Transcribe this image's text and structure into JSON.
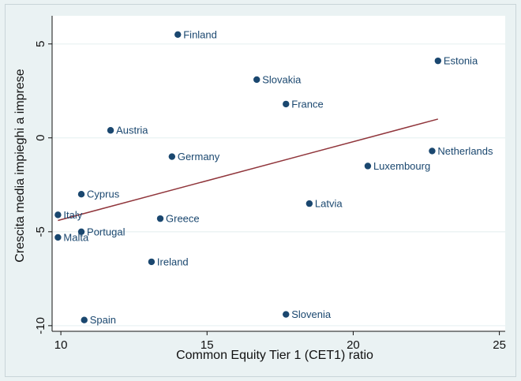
{
  "chart_data": {
    "type": "scatter",
    "xlabel": "Common Equity Tier 1 (CET1) ratio",
    "ylabel": "Crescita media impieghi a imprese",
    "xlim": [
      9.7,
      25.2
    ],
    "ylim": [
      -10.3,
      6.5
    ],
    "xticks": [
      10,
      15,
      20,
      25
    ],
    "yticks": [
      -10,
      -5,
      0,
      5
    ],
    "grid": true,
    "legend": "none",
    "marker_color": "#1a476f",
    "fit_color": "#90353b",
    "points": [
      {
        "label": "Finland",
        "x": 14.0,
        "y": 5.5
      },
      {
        "label": "Estonia",
        "x": 22.9,
        "y": 4.1
      },
      {
        "label": "Slovakia",
        "x": 16.7,
        "y": 3.1
      },
      {
        "label": "France",
        "x": 17.7,
        "y": 1.8
      },
      {
        "label": "Austria",
        "x": 11.7,
        "y": 0.4
      },
      {
        "label": "Netherlands",
        "x": 22.7,
        "y": -0.7
      },
      {
        "label": "Germany",
        "x": 13.8,
        "y": -1.0
      },
      {
        "label": "Luxembourg",
        "x": 20.5,
        "y": -1.5
      },
      {
        "label": "Cyprus",
        "x": 10.7,
        "y": -3.0
      },
      {
        "label": "Latvia",
        "x": 18.5,
        "y": -3.5
      },
      {
        "label": "Italy",
        "x": 9.9,
        "y": -4.1
      },
      {
        "label": "Greece",
        "x": 13.4,
        "y": -4.3
      },
      {
        "label": "Portugal",
        "x": 10.7,
        "y": -5.0
      },
      {
        "label": "Malta",
        "x": 9.9,
        "y": -5.3
      },
      {
        "label": "Ireland",
        "x": 13.1,
        "y": -6.6
      },
      {
        "label": "Slovenia",
        "x": 17.7,
        "y": -9.4
      },
      {
        "label": "Spain",
        "x": 10.8,
        "y": -9.7
      }
    ],
    "fit_line": {
      "x": [
        9.9,
        22.9
      ],
      "y": [
        -4.4,
        1.0
      ]
    }
  }
}
